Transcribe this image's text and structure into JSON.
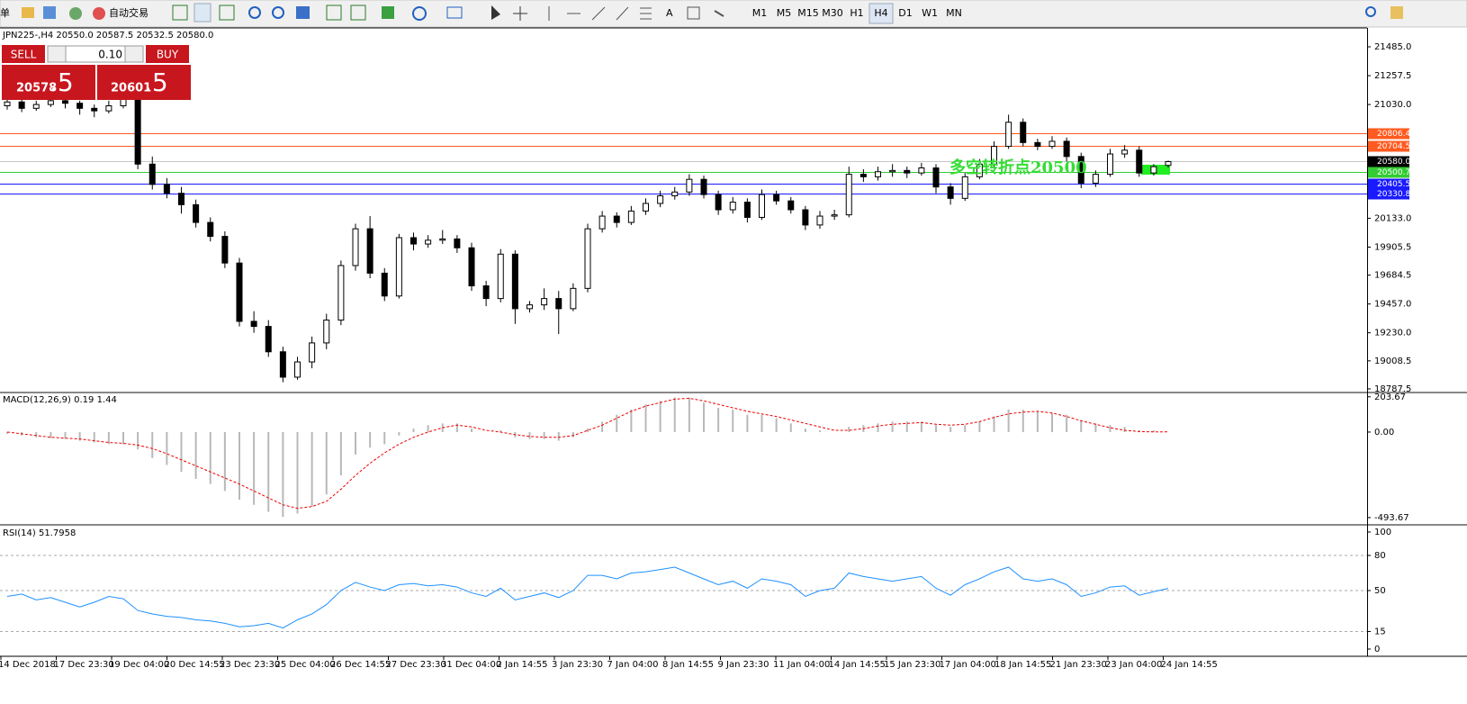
{
  "toolbar": {
    "menu_cut": "单",
    "auto_trade": "自动交易",
    "text_tool": "A",
    "timeframes": [
      "M1",
      "M5",
      "M15",
      "M30",
      "H1",
      "H4",
      "D1",
      "W1",
      "MN"
    ],
    "active_timeframe": "H4"
  },
  "trade_panel": {
    "sell": "SELL",
    "buy": "BUY",
    "lot": "0.10",
    "sell_price_main": "20578",
    "sell_price_tail": ".5",
    "buy_price_main": "20601",
    "buy_price_tail": ".5"
  },
  "main": {
    "header": "JPN225-,H4  20550.0 20587.5 20532.5 20580.0",
    "ylim": [
      18766,
      21627
    ],
    "yticks": [
      {
        "value": 21485,
        "label": "21485.0"
      },
      {
        "value": 21257.5,
        "label": "21257.5"
      },
      {
        "value": 21030,
        "label": "21030.0"
      },
      {
        "value": 20133,
        "label": "20133.0"
      },
      {
        "value": 19905.5,
        "label": "19905.5"
      },
      {
        "value": 19684.5,
        "label": "19684.5"
      },
      {
        "value": 19457,
        "label": "19457.0"
      },
      {
        "value": 19230,
        "label": "19230.0"
      },
      {
        "value": 19008.5,
        "label": "19008.5"
      },
      {
        "value": 18787.5,
        "label": "18787.5"
      }
    ],
    "levels": [
      {
        "value": 20806.4,
        "label": "20806.4",
        "color": "#ff5a1f"
      },
      {
        "value": 20704.5,
        "label": "20704.5",
        "color": "#ff5a1f"
      },
      {
        "value": 20580,
        "label": "20580.0",
        "color": "#c8c8c8"
      },
      {
        "value": 20500.7,
        "label": "20500.7",
        "color": "#33cc33"
      },
      {
        "value": 20405.5,
        "label": "20405.5",
        "color": "#1a1aff"
      },
      {
        "value": 20330.8,
        "label": "20330.8",
        "color": "#1a1aff"
      }
    ],
    "annotation": "多空转折点20500",
    "candles": [
      [
        21020,
        21080,
        20990,
        21050
      ],
      [
        21050,
        21070,
        20970,
        21000
      ],
      [
        21000,
        21060,
        20980,
        21030
      ],
      [
        21030,
        21090,
        21010,
        21060
      ],
      [
        21060,
        21080,
        21000,
        21040
      ],
      [
        21040,
        21060,
        20950,
        21000
      ],
      [
        21000,
        21030,
        20930,
        20980
      ],
      [
        20980,
        21060,
        20960,
        21020
      ],
      [
        21020,
        21120,
        21000,
        21080
      ],
      [
        21080,
        21100,
        20520,
        20560
      ],
      [
        20560,
        20620,
        20360,
        20400
      ],
      [
        20400,
        20450,
        20290,
        20330
      ],
      [
        20330,
        20380,
        20170,
        20240
      ],
      [
        20240,
        20280,
        20060,
        20100
      ],
      [
        20100,
        20140,
        19950,
        19990
      ],
      [
        19990,
        20030,
        19740,
        19780
      ],
      [
        19780,
        19820,
        19280,
        19320
      ],
      [
        19320,
        19400,
        19230,
        19280
      ],
      [
        19280,
        19330,
        19040,
        19080
      ],
      [
        19080,
        19120,
        18840,
        18880
      ],
      [
        18880,
        19040,
        18860,
        19000
      ],
      [
        19000,
        19200,
        18950,
        19150
      ],
      [
        19150,
        19380,
        19100,
        19330
      ],
      [
        19330,
        19800,
        19290,
        19760
      ],
      [
        19760,
        20090,
        19720,
        20050
      ],
      [
        20050,
        20150,
        19660,
        19700
      ],
      [
        19700,
        19740,
        19480,
        19520
      ],
      [
        19520,
        20010,
        19500,
        19980
      ],
      [
        19980,
        20020,
        19880,
        19930
      ],
      [
        19930,
        20000,
        19900,
        19960
      ],
      [
        19960,
        20040,
        19930,
        19970
      ],
      [
        19970,
        20000,
        19860,
        19900
      ],
      [
        19900,
        19940,
        19560,
        19600
      ],
      [
        19600,
        19640,
        19440,
        19500
      ],
      [
        19500,
        19890,
        19470,
        19850
      ],
      [
        19850,
        19880,
        19300,
        19420
      ],
      [
        19420,
        19480,
        19390,
        19450
      ],
      [
        19450,
        19580,
        19410,
        19500
      ],
      [
        19500,
        19560,
        19220,
        19420
      ],
      [
        19420,
        19620,
        19400,
        19580
      ],
      [
        19580,
        20090,
        19550,
        20050
      ],
      [
        20050,
        20190,
        20020,
        20150
      ],
      [
        20150,
        20180,
        20060,
        20100
      ],
      [
        20100,
        20230,
        20080,
        20190
      ],
      [
        20190,
        20290,
        20160,
        20250
      ],
      [
        20250,
        20350,
        20220,
        20310
      ],
      [
        20310,
        20380,
        20280,
        20340
      ],
      [
        20340,
        20480,
        20310,
        20440
      ],
      [
        20440,
        20470,
        20290,
        20320
      ],
      [
        20320,
        20350,
        20160,
        20200
      ],
      [
        20200,
        20300,
        20170,
        20260
      ],
      [
        20260,
        20290,
        20100,
        20140
      ],
      [
        20140,
        20360,
        20120,
        20320
      ],
      [
        20320,
        20350,
        20240,
        20270
      ],
      [
        20270,
        20300,
        20170,
        20200
      ],
      [
        20200,
        20230,
        20040,
        20080
      ],
      [
        20080,
        20190,
        20050,
        20150
      ],
      [
        20150,
        20200,
        20120,
        20160
      ],
      [
        20160,
        20540,
        20140,
        20480
      ],
      [
        20480,
        20520,
        20420,
        20460
      ],
      [
        20460,
        20540,
        20430,
        20500
      ],
      [
        20500,
        20560,
        20460,
        20510
      ],
      [
        20510,
        20540,
        20450,
        20490
      ],
      [
        20490,
        20570,
        20470,
        20530
      ],
      [
        20530,
        20560,
        20330,
        20380
      ],
      [
        20380,
        20410,
        20240,
        20290
      ],
      [
        20290,
        20490,
        20270,
        20460
      ],
      [
        20460,
        20600,
        20440,
        20560
      ],
      [
        20560,
        20740,
        20540,
        20700
      ],
      [
        20700,
        20950,
        20680,
        20890
      ],
      [
        20890,
        20920,
        20700,
        20730
      ],
      [
        20730,
        20760,
        20670,
        20700
      ],
      [
        20700,
        20780,
        20680,
        20740
      ],
      [
        20740,
        20770,
        20580,
        20620
      ],
      [
        20620,
        20650,
        20370,
        20410
      ],
      [
        20410,
        20510,
        20380,
        20480
      ],
      [
        20480,
        20680,
        20460,
        20640
      ],
      [
        20640,
        20710,
        20610,
        20670
      ],
      [
        20670,
        20700,
        20460,
        20490
      ],
      [
        20490,
        20560,
        20470,
        20540
      ],
      [
        20550,
        20587.5,
        20532.5,
        20580
      ]
    ]
  },
  "macd": {
    "label": "MACD(12,26,9) 0.19 1.44",
    "ylim": [
      -520,
      218
    ],
    "yticks": [
      {
        "value": 203.67,
        "label": "203.67"
      },
      {
        "value": 0,
        "label": "0.00"
      },
      {
        "value": -493.67,
        "label": "-493.67"
      }
    ],
    "histogram": [
      -10,
      -20,
      -30,
      -35,
      -40,
      -50,
      -60,
      -70,
      -70,
      -100,
      -150,
      -190,
      -230,
      -270,
      -300,
      -340,
      -390,
      -420,
      -460,
      -490,
      -470,
      -430,
      -360,
      -250,
      -130,
      -90,
      -70,
      -20,
      20,
      40,
      50,
      50,
      20,
      0,
      10,
      -30,
      -40,
      -40,
      -50,
      -30,
      20,
      60,
      100,
      130,
      160,
      180,
      200,
      200,
      170,
      140,
      130,
      100,
      100,
      80,
      50,
      20,
      10,
      0,
      30,
      40,
      50,
      60,
      60,
      60,
      40,
      30,
      40,
      60,
      90,
      130,
      130,
      120,
      110,
      100,
      70,
      50,
      40,
      30,
      10,
      10,
      0.19
    ],
    "signal": [
      0,
      -10,
      -20,
      -30,
      -35,
      -40,
      -50,
      -60,
      -65,
      -75,
      -95,
      -125,
      -160,
      -195,
      -230,
      -265,
      -300,
      -340,
      -380,
      -420,
      -440,
      -430,
      -400,
      -330,
      -250,
      -180,
      -120,
      -70,
      -30,
      0,
      25,
      40,
      30,
      10,
      0,
      -15,
      -25,
      -30,
      -30,
      -20,
      10,
      40,
      80,
      120,
      150,
      170,
      190,
      195,
      180,
      160,
      140,
      120,
      105,
      90,
      70,
      50,
      30,
      10,
      10,
      20,
      35,
      45,
      50,
      55,
      45,
      40,
      45,
      60,
      85,
      105,
      115,
      120,
      110,
      90,
      65,
      45,
      25,
      10,
      3,
      1,
      1.44
    ]
  },
  "rsi": {
    "label": "RSI(14) 51.7958",
    "ylim": [
      -5.4,
      104.6
    ],
    "yticks": [
      100,
      80,
      50,
      15,
      0
    ],
    "levels": [
      80,
      50,
      15
    ],
    "values": [
      45,
      47,
      42,
      44,
      40,
      36,
      40,
      45,
      43,
      33,
      30,
      28,
      27,
      25,
      24,
      22,
      19,
      20,
      22,
      18,
      25,
      30,
      38,
      50,
      57,
      53,
      50,
      55,
      56,
      54,
      55,
      53,
      48,
      45,
      52,
      42,
      45,
      48,
      44,
      50,
      63,
      63,
      60,
      65,
      66,
      68,
      70,
      65,
      60,
      55,
      58,
      52,
      60,
      58,
      55,
      45,
      50,
      52,
      65,
      62,
      60,
      58,
      60,
      62,
      52,
      46,
      55,
      60,
      66,
      70,
      60,
      58,
      60,
      55,
      45,
      48,
      53,
      54,
      46,
      49,
      51.7958
    ]
  },
  "xaxis": {
    "labels": [
      "14 Dec 2018",
      "17 Dec 23:30",
      "19 Dec 04:00",
      "20 Dec 14:55",
      "23 Dec 23:30",
      "25 Dec 04:00",
      "26 Dec 14:55",
      "27 Dec 23:30",
      "31 Dec 04:00",
      "2 Jan 14:55",
      "3 Jan 23:30",
      "7 Jan 04:00",
      "8 Jan 14:55",
      "9 Jan 23:30",
      "11 Jan 04:00",
      "14 Jan 14:55",
      "15 Jan 23:30",
      "17 Jan 04:00",
      "18 Jan 14:55",
      "21 Jan 23:30",
      "23 Jan 04:00",
      "24 Jan 14:55"
    ]
  }
}
